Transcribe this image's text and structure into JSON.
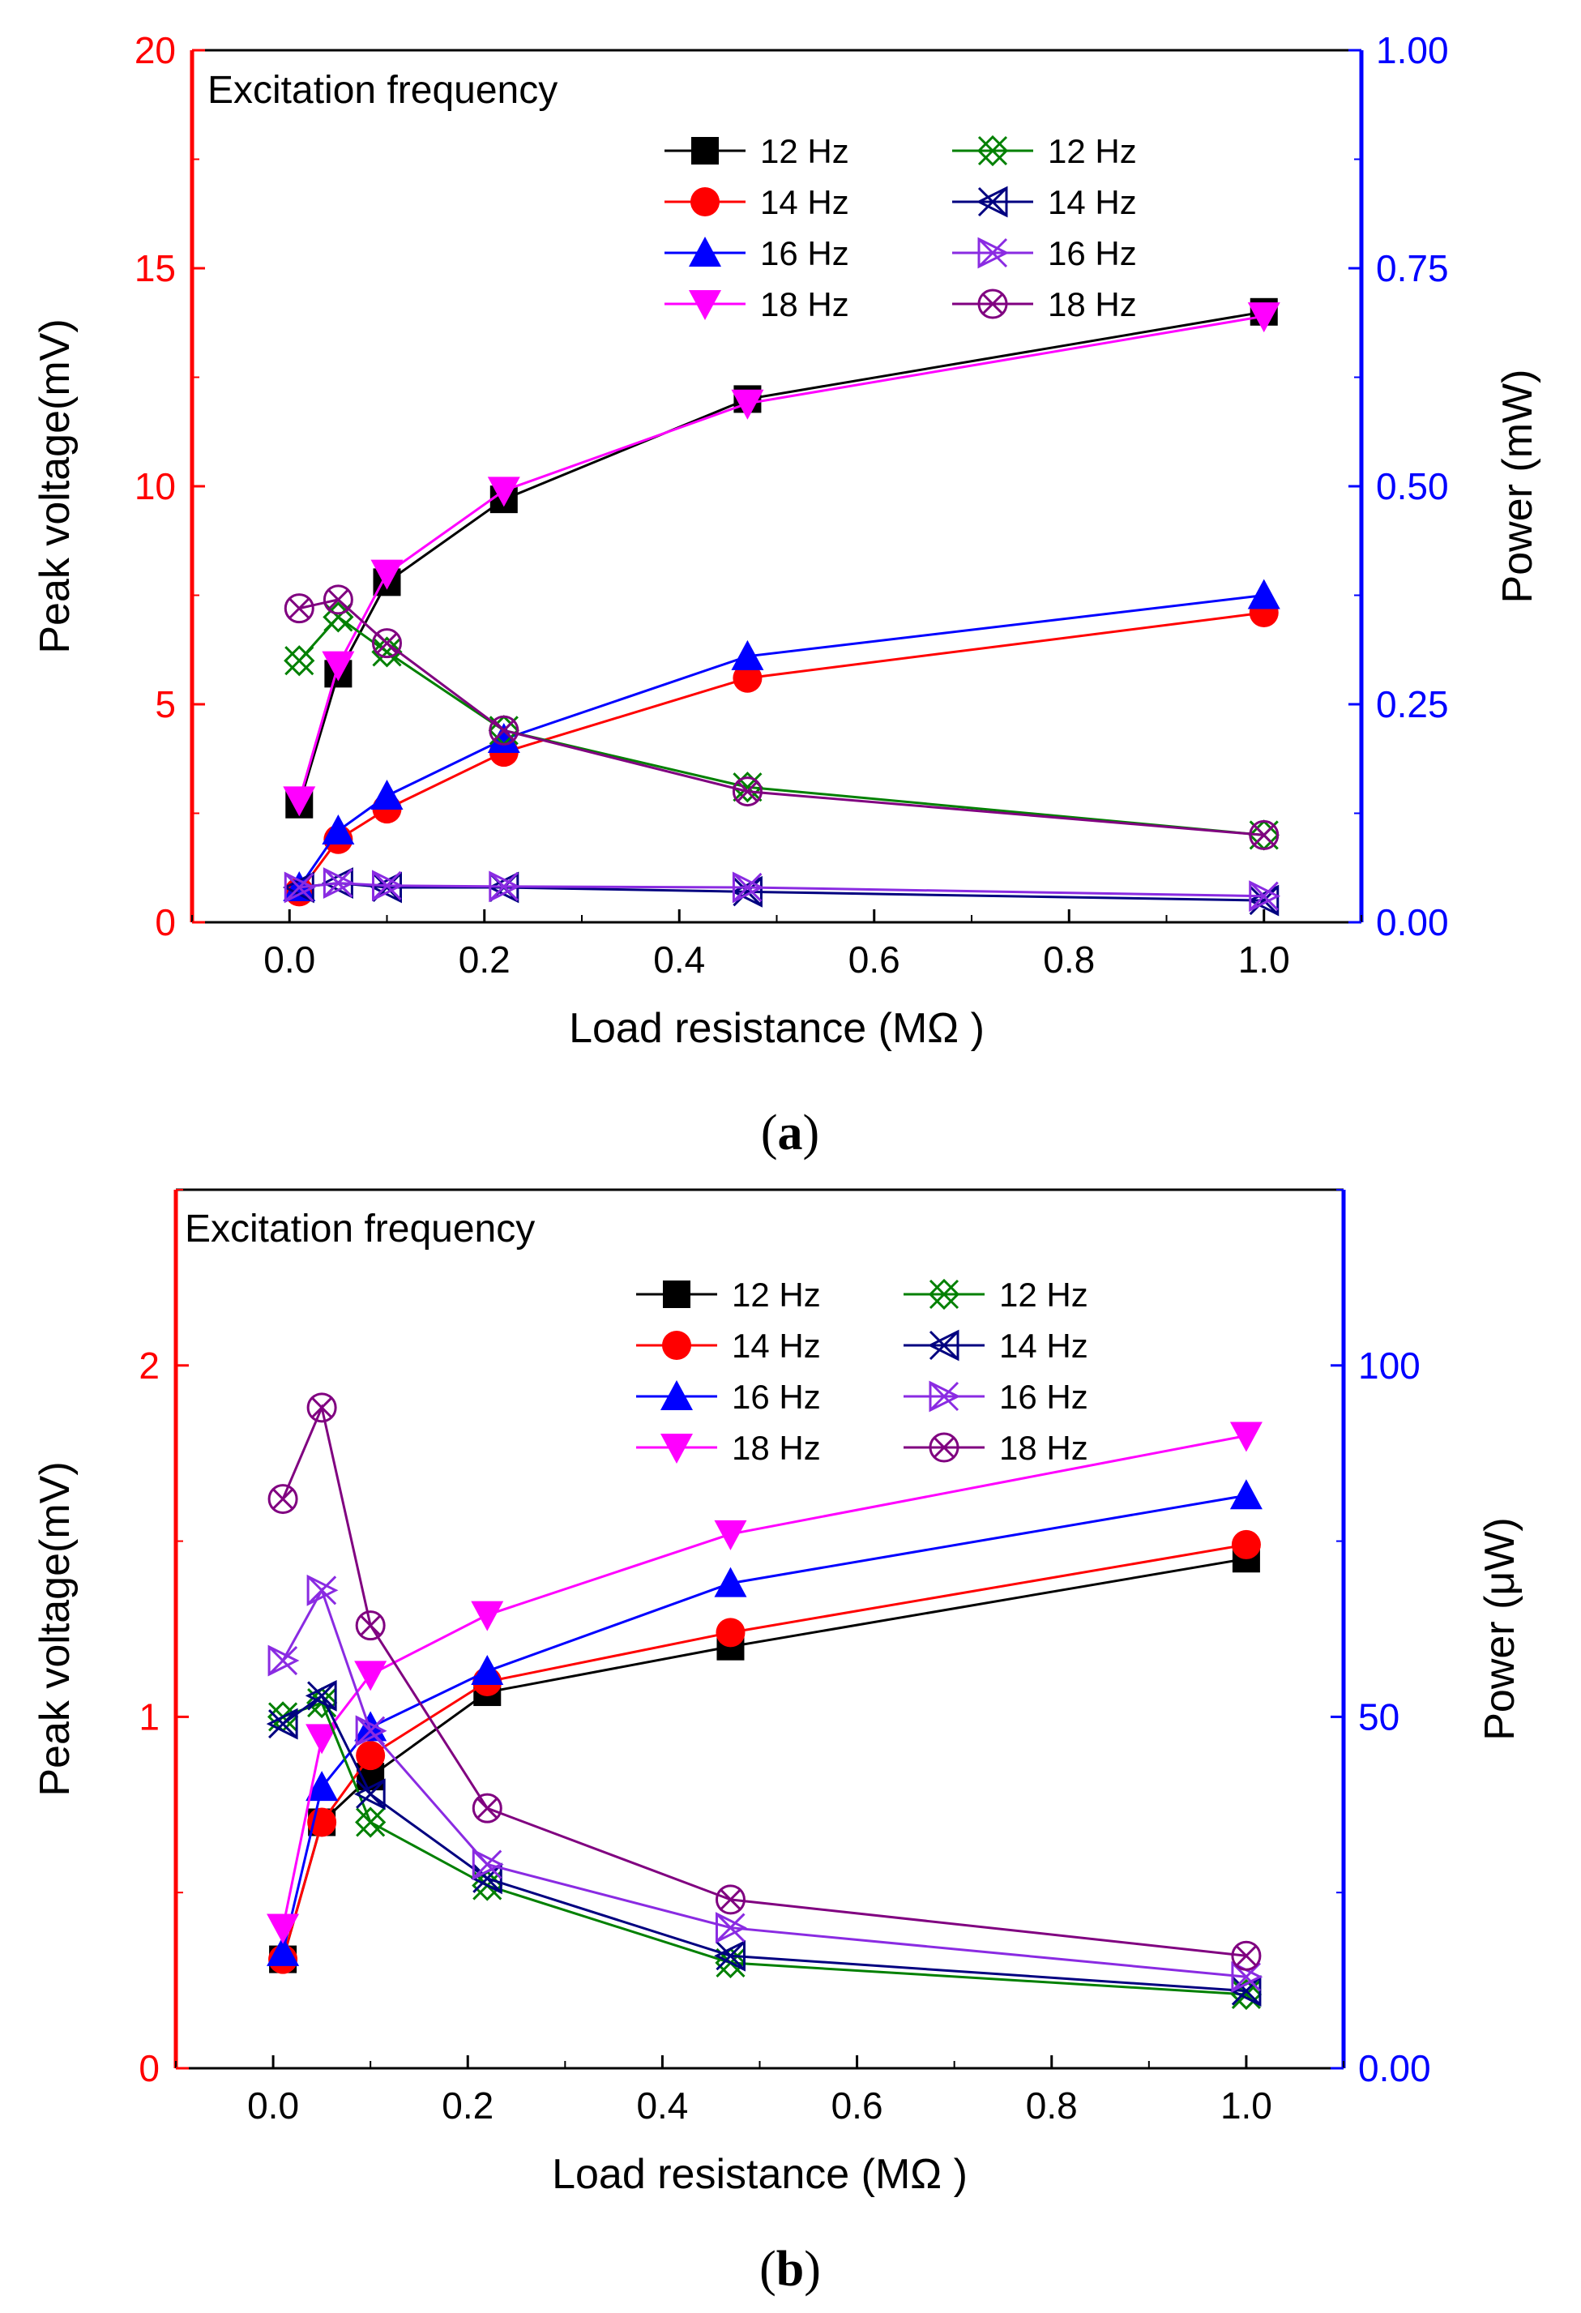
{
  "chart_data": [
    {
      "type": "line",
      "panel": "a",
      "caption_open": "(",
      "caption_letter": "a",
      "caption_close": ")",
      "title": "Excitation frequency",
      "xlabel": "Load resistance (MΩ )",
      "ylabel_left": "Peak voltage(mV)",
      "ylabel_right": "Power (mW)",
      "xlim": [
        -0.1,
        1.1
      ],
      "ylim_left": [
        0,
        20
      ],
      "ylim_right": [
        0,
        1.0
      ],
      "x_ticks": [
        "0.0",
        "0.2",
        "0.4",
        "0.6",
        "0.8",
        "1.0"
      ],
      "y_ticks_left": [
        "0",
        "5",
        "10",
        "15",
        "20"
      ],
      "y_ticks_right": [
        "0.00",
        "0.25",
        "0.50",
        "0.75",
        "1.00"
      ],
      "x": [
        0.01,
        0.05,
        0.1,
        0.22,
        0.47,
        1.0
      ],
      "voltage_series": [
        {
          "name": "12 Hz",
          "marker": "square",
          "color": "#000000",
          "values": [
            2.7,
            5.7,
            7.8,
            9.7,
            12.0,
            14.0
          ]
        },
        {
          "name": "14 Hz",
          "marker": "circle",
          "color": "#ff0000",
          "values": [
            0.7,
            1.9,
            2.6,
            3.9,
            5.6,
            7.1
          ]
        },
        {
          "name": "16 Hz",
          "marker": "triangle-up",
          "color": "#0000ff",
          "values": [
            0.8,
            2.1,
            2.9,
            4.2,
            6.1,
            7.5
          ]
        },
        {
          "name": "18 Hz",
          "marker": "triangle-down",
          "color": "#ff00ff",
          "values": [
            2.8,
            5.9,
            8.0,
            9.9,
            11.9,
            13.9
          ]
        }
      ],
      "power_series": [
        {
          "name": "12 Hz",
          "marker": "cross-x",
          "color": "#008000",
          "values": [
            0.3,
            0.35,
            0.31,
            0.22,
            0.155,
            0.1
          ]
        },
        {
          "name": "14 Hz",
          "marker": "tri-left-x",
          "color": "#000080",
          "values": [
            0.04,
            0.045,
            0.04,
            0.04,
            0.035,
            0.025
          ]
        },
        {
          "name": "16 Hz",
          "marker": "tri-right-x",
          "color": "#8a2be2",
          "values": [
            0.04,
            0.045,
            0.042,
            0.041,
            0.04,
            0.03
          ]
        },
        {
          "name": "18 Hz",
          "marker": "circle-x",
          "color": "#800080",
          "values": [
            0.36,
            0.37,
            0.32,
            0.22,
            0.15,
            0.1
          ]
        }
      ]
    },
    {
      "type": "line",
      "panel": "b",
      "caption_open": "(",
      "caption_letter": "b",
      "caption_close": ")",
      "title": "Excitation frequency",
      "xlabel": "Load resistance (MΩ )",
      "ylabel_left": "Peak voltage(mV)",
      "ylabel_right": "Power (μW)",
      "xlim": [
        -0.1,
        1.1
      ],
      "ylim_left": [
        0,
        2.5
      ],
      "ylim_right": [
        0,
        125
      ],
      "x_ticks": [
        "0.0",
        "0.2",
        "0.4",
        "0.6",
        "0.8",
        "1.0"
      ],
      "y_ticks_left": [
        "0",
        "1",
        "2"
      ],
      "y_ticks_right": [
        "0.00",
        "50",
        "100"
      ],
      "x": [
        0.01,
        0.05,
        0.1,
        0.22,
        0.47,
        1.0
      ],
      "voltage_series": [
        {
          "name": "12 Hz",
          "marker": "square",
          "color": "#000000",
          "values": [
            0.31,
            0.7,
            0.83,
            1.07,
            1.2,
            1.45
          ]
        },
        {
          "name": "14 Hz",
          "marker": "circle",
          "color": "#ff0000",
          "values": [
            0.31,
            0.7,
            0.89,
            1.1,
            1.24,
            1.49
          ]
        },
        {
          "name": "16 Hz",
          "marker": "triangle-up",
          "color": "#0000ff",
          "values": [
            0.33,
            0.8,
            0.97,
            1.13,
            1.38,
            1.63
          ]
        },
        {
          "name": "18 Hz",
          "marker": "triangle-down",
          "color": "#ff00ff",
          "values": [
            0.4,
            0.94,
            1.12,
            1.29,
            1.52,
            1.8
          ]
        }
      ],
      "power_series": [
        {
          "name": "12 Hz",
          "marker": "cross-x",
          "color": "#008000",
          "values": [
            50,
            52,
            35,
            26,
            15,
            10.5
          ]
        },
        {
          "name": "14 Hz",
          "marker": "tri-left-x",
          "color": "#000080",
          "values": [
            49,
            53,
            39,
            27,
            16,
            11
          ]
        },
        {
          "name": "16 Hz",
          "marker": "tri-right-x",
          "color": "#8a2be2",
          "values": [
            58,
            68,
            48,
            29,
            20,
            13
          ]
        },
        {
          "name": "18 Hz",
          "marker": "circle-x",
          "color": "#800080",
          "values": [
            81,
            94,
            63,
            37,
            24,
            16
          ]
        }
      ]
    }
  ],
  "colors": {
    "left_axis": "#ff0000",
    "right_axis": "#0000ff"
  }
}
